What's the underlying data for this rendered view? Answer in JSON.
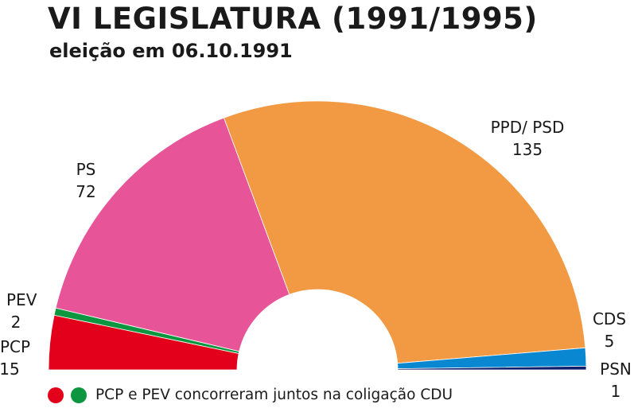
{
  "title": "VI LEGISLATURA (1991/1995)",
  "subtitle": "eleição em 06.10.1991",
  "chart_data": {
    "type": "pie",
    "series": [
      {
        "name": "PCP",
        "value": 15,
        "color": "#e2001a"
      },
      {
        "name": "PEV",
        "value": 2,
        "color": "#0d9640"
      },
      {
        "name": "PS",
        "value": 72,
        "color": "#e75598"
      },
      {
        "name": "PPD/ PSD",
        "value": 135,
        "color": "#f29a43"
      },
      {
        "name": "CDS",
        "value": 5,
        "color": "#0a87d1"
      },
      {
        "name": "PSN",
        "value": 1,
        "color": "#0d1f6b"
      }
    ]
  },
  "legend_note": {
    "text": "PCP e PEV concorreram juntos na coligação CDU",
    "dot_colors": [
      "#e2001a",
      "#0d9640"
    ]
  }
}
